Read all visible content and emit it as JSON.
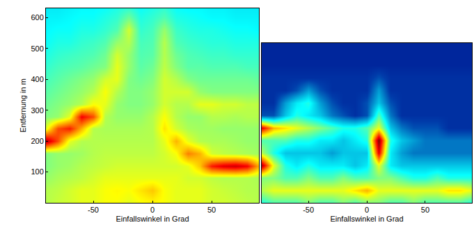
{
  "chart_data": [
    {
      "type": "heatmap",
      "xlabel": "Einfallswinkel in Grad",
      "ylabel": "Entfernung in m",
      "color": "Jet",
      "xlim": [
        -90,
        90
      ],
      "xticks": [
        -50,
        0,
        50
      ],
      "ylim": [
        0,
        630
      ],
      "yticks": [
        100,
        200,
        300,
        400,
        500,
        600
      ],
      "zlim": [
        0,
        1
      ],
      "x": [
        -90,
        -80,
        -70,
        -60,
        -50,
        -40,
        -30,
        -20,
        -10,
        0,
        10,
        20,
        30,
        40,
        50,
        60,
        70,
        80,
        90
      ],
      "y": [
        0,
        40,
        80,
        120,
        160,
        200,
        240,
        280,
        320,
        360,
        400,
        440,
        480,
        520,
        560,
        600,
        630
      ],
      "z": [
        [
          0.55,
          0.57,
          0.58,
          0.6,
          0.6,
          0.62,
          0.62,
          0.6,
          0.62,
          0.63,
          0.62,
          0.6,
          0.6,
          0.6,
          0.58,
          0.58,
          0.57,
          0.56,
          0.55
        ],
        [
          0.55,
          0.56,
          0.58,
          0.6,
          0.6,
          0.62,
          0.63,
          0.62,
          0.65,
          0.68,
          0.62,
          0.6,
          0.6,
          0.6,
          0.58,
          0.57,
          0.56,
          0.55,
          0.55
        ],
        [
          0.52,
          0.54,
          0.55,
          0.56,
          0.58,
          0.6,
          0.6,
          0.6,
          0.6,
          0.6,
          0.6,
          0.6,
          0.58,
          0.58,
          0.56,
          0.55,
          0.55,
          0.55,
          0.54
        ],
        [
          0.5,
          0.52,
          0.53,
          0.55,
          0.56,
          0.57,
          0.58,
          0.58,
          0.58,
          0.58,
          0.58,
          0.58,
          0.6,
          0.68,
          0.85,
          0.9,
          0.92,
          0.88,
          0.7
        ],
        [
          0.5,
          0.52,
          0.52,
          0.53,
          0.55,
          0.56,
          0.56,
          0.56,
          0.56,
          0.56,
          0.58,
          0.62,
          0.75,
          0.7,
          0.58,
          0.56,
          0.55,
          0.54,
          0.53
        ],
        [
          0.95,
          0.8,
          0.6,
          0.55,
          0.55,
          0.55,
          0.55,
          0.55,
          0.55,
          0.55,
          0.6,
          0.7,
          0.6,
          0.55,
          0.54,
          0.54,
          0.53,
          0.52,
          0.52
        ],
        [
          0.6,
          0.8,
          0.85,
          0.7,
          0.55,
          0.54,
          0.54,
          0.54,
          0.54,
          0.55,
          0.65,
          0.58,
          0.54,
          0.53,
          0.53,
          0.52,
          0.52,
          0.52,
          0.52
        ],
        [
          0.5,
          0.52,
          0.6,
          0.88,
          0.8,
          0.55,
          0.52,
          0.52,
          0.52,
          0.55,
          0.62,
          0.55,
          0.52,
          0.52,
          0.55,
          0.55,
          0.54,
          0.55,
          0.55
        ],
        [
          0.48,
          0.5,
          0.52,
          0.55,
          0.62,
          0.6,
          0.52,
          0.5,
          0.5,
          0.52,
          0.58,
          0.55,
          0.55,
          0.6,
          0.6,
          0.58,
          0.58,
          0.56,
          0.56
        ],
        [
          0.46,
          0.48,
          0.5,
          0.52,
          0.55,
          0.62,
          0.55,
          0.5,
          0.5,
          0.52,
          0.58,
          0.58,
          0.58,
          0.52,
          0.5,
          0.5,
          0.5,
          0.5,
          0.5
        ],
        [
          0.44,
          0.46,
          0.48,
          0.5,
          0.52,
          0.58,
          0.6,
          0.5,
          0.48,
          0.5,
          0.58,
          0.55,
          0.5,
          0.48,
          0.48,
          0.48,
          0.48,
          0.48,
          0.47
        ],
        [
          0.42,
          0.44,
          0.45,
          0.46,
          0.48,
          0.5,
          0.6,
          0.52,
          0.46,
          0.48,
          0.56,
          0.5,
          0.46,
          0.46,
          0.45,
          0.45,
          0.45,
          0.44,
          0.44
        ],
        [
          0.4,
          0.42,
          0.43,
          0.44,
          0.45,
          0.48,
          0.58,
          0.52,
          0.45,
          0.46,
          0.55,
          0.48,
          0.45,
          0.44,
          0.43,
          0.43,
          0.42,
          0.42,
          0.42
        ],
        [
          0.38,
          0.4,
          0.4,
          0.42,
          0.43,
          0.45,
          0.52,
          0.55,
          0.44,
          0.45,
          0.55,
          0.45,
          0.43,
          0.42,
          0.41,
          0.41,
          0.4,
          0.4,
          0.4
        ],
        [
          0.37,
          0.38,
          0.38,
          0.4,
          0.4,
          0.42,
          0.45,
          0.58,
          0.42,
          0.44,
          0.52,
          0.43,
          0.41,
          0.4,
          0.4,
          0.39,
          0.38,
          0.38,
          0.37
        ],
        [
          0.36,
          0.36,
          0.37,
          0.38,
          0.38,
          0.4,
          0.42,
          0.48,
          0.4,
          0.42,
          0.45,
          0.4,
          0.39,
          0.38,
          0.37,
          0.37,
          0.36,
          0.36,
          0.36
        ],
        [
          0.35,
          0.35,
          0.36,
          0.37,
          0.37,
          0.38,
          0.4,
          0.42,
          0.38,
          0.4,
          0.42,
          0.38,
          0.37,
          0.37,
          0.36,
          0.36,
          0.35,
          0.35,
          0.35
        ]
      ]
    },
    {
      "type": "heatmap",
      "xlabel": "Einfallswinkel in Grad",
      "color": "Jet",
      "tick_labels": "x",
      "xlim": [
        -90,
        90
      ],
      "xticks": [
        -50,
        0,
        50
      ],
      "ylim": [
        0,
        510
      ],
      "zlim": [
        0,
        1
      ],
      "x": [
        -90,
        -80,
        -70,
        -60,
        -50,
        -40,
        -30,
        -20,
        -10,
        0,
        10,
        20,
        30,
        40,
        50,
        60,
        70,
        80,
        90
      ],
      "y": [
        0,
        40,
        80,
        120,
        160,
        200,
        240,
        280,
        320,
        360,
        400,
        440,
        480,
        510
      ],
      "z": [
        [
          0.4,
          0.45,
          0.45,
          0.45,
          0.5,
          0.45,
          0.45,
          0.5,
          0.45,
          0.5,
          0.5,
          0.45,
          0.45,
          0.5,
          0.45,
          0.45,
          0.45,
          0.45,
          0.4
        ],
        [
          0.55,
          0.6,
          0.6,
          0.6,
          0.6,
          0.6,
          0.6,
          0.6,
          0.65,
          0.7,
          0.6,
          0.6,
          0.6,
          0.6,
          0.6,
          0.6,
          0.65,
          0.65,
          0.6
        ],
        [
          0.5,
          0.5,
          0.45,
          0.45,
          0.5,
          0.45,
          0.45,
          0.5,
          0.45,
          0.45,
          0.5,
          0.5,
          0.45,
          0.4,
          0.4,
          0.45,
          0.4,
          0.4,
          0.4
        ],
        [
          0.95,
          0.6,
          0.4,
          0.35,
          0.4,
          0.35,
          0.35,
          0.35,
          0.3,
          0.35,
          0.6,
          0.35,
          0.3,
          0.3,
          0.3,
          0.3,
          0.3,
          0.3,
          0.3
        ],
        [
          0.55,
          0.4,
          0.3,
          0.3,
          0.3,
          0.3,
          0.25,
          0.3,
          0.3,
          0.3,
          0.9,
          0.35,
          0.25,
          0.2,
          0.2,
          0.2,
          0.2,
          0.2,
          0.2
        ],
        [
          0.45,
          0.45,
          0.45,
          0.4,
          0.4,
          0.35,
          0.35,
          0.3,
          0.35,
          0.4,
          1.0,
          0.4,
          0.3,
          0.25,
          0.2,
          0.2,
          0.2,
          0.2,
          0.2
        ],
        [
          0.9,
          0.7,
          0.65,
          0.6,
          0.55,
          0.5,
          0.45,
          0.4,
          0.4,
          0.45,
          0.6,
          0.3,
          0.2,
          0.15,
          0.15,
          0.15,
          0.1,
          0.1,
          0.1
        ],
        [
          0.15,
          0.15,
          0.3,
          0.4,
          0.35,
          0.3,
          0.2,
          0.15,
          0.1,
          0.15,
          0.45,
          0.2,
          0.1,
          0.1,
          0.1,
          0.1,
          0.1,
          0.1,
          0.1
        ],
        [
          0.1,
          0.1,
          0.25,
          0.35,
          0.4,
          0.25,
          0.15,
          0.1,
          0.1,
          0.15,
          0.3,
          0.15,
          0.1,
          0.1,
          0.1,
          0.1,
          0.1,
          0.1,
          0.1
        ],
        [
          0.1,
          0.1,
          0.1,
          0.15,
          0.25,
          0.15,
          0.1,
          0.1,
          0.1,
          0.1,
          0.25,
          0.1,
          0.1,
          0.1,
          0.1,
          0.1,
          0.1,
          0.1,
          0.1
        ],
        [
          0.1,
          0.1,
          0.1,
          0.1,
          0.1,
          0.1,
          0.1,
          0.1,
          0.1,
          0.1,
          0.15,
          0.1,
          0.1,
          0.1,
          0.1,
          0.1,
          0.1,
          0.1,
          0.1
        ],
        [
          0.08,
          0.08,
          0.08,
          0.08,
          0.08,
          0.08,
          0.08,
          0.08,
          0.08,
          0.08,
          0.08,
          0.08,
          0.08,
          0.08,
          0.08,
          0.08,
          0.08,
          0.08,
          0.08
        ],
        [
          0.08,
          0.08,
          0.08,
          0.08,
          0.08,
          0.08,
          0.08,
          0.08,
          0.08,
          0.08,
          0.08,
          0.08,
          0.08,
          0.08,
          0.08,
          0.08,
          0.08,
          0.08,
          0.08
        ],
        [
          0.08,
          0.08,
          0.08,
          0.08,
          0.08,
          0.08,
          0.08,
          0.08,
          0.08,
          0.08,
          0.08,
          0.08,
          0.08,
          0.08,
          0.08,
          0.08,
          0.08,
          0.08,
          0.08
        ]
      ]
    }
  ]
}
